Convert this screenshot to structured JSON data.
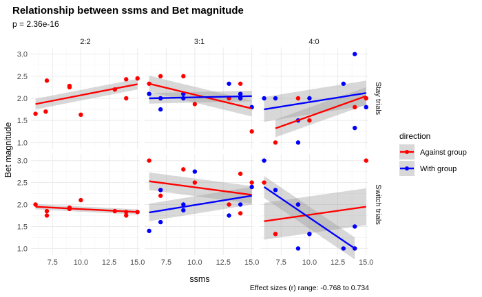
{
  "chart_data": {
    "type": "scatter",
    "title": "Relationship between ssms and Bet magnitude",
    "subtitle": "p = 2.36e-16",
    "xlabel": "ssms",
    "ylabel": "Bet magnitude",
    "caption": "Effect sizes (r) range: -0.768 to 0.734",
    "xlim": [
      5.6,
      15.2
    ],
    "ylim": [
      0.85,
      3.15
    ],
    "xticks": [
      7.5,
      10.0,
      12.5,
      15.0
    ],
    "xtick_labels": [
      "7.5",
      "10.0",
      "12.5",
      "15.0"
    ],
    "yticks": [
      1.0,
      1.5,
      2.0,
      2.5,
      3.0
    ],
    "ytick_labels": [
      "1.0",
      "1.5",
      "2.0",
      "2.5",
      "3.0"
    ],
    "columns": [
      "2:2",
      "3:1",
      "4:0"
    ],
    "rows": [
      "Stay trials",
      "Switch trials"
    ],
    "legend": {
      "title": "direction",
      "entries": [
        {
          "label": "Against group",
          "color": "#FF0000"
        },
        {
          "label": "With group",
          "color": "#0000FF"
        }
      ]
    },
    "panels": [
      {
        "row": "Stay trials",
        "col": "2:2",
        "series": [
          {
            "name": "Against group",
            "color": "#FF0000",
            "points": [
              [
                6,
                1.65
              ],
              [
                6.9,
                1.7
              ],
              [
                7,
                2.4
              ],
              [
                9,
                2.25
              ],
              [
                9,
                2.28
              ],
              [
                10,
                1.63
              ],
              [
                13,
                2.2
              ],
              [
                14,
                2.43
              ],
              [
                14,
                2.0
              ],
              [
                15,
                2.45
              ]
            ],
            "fit": {
              "x": [
                6,
                15
              ],
              "y": [
                1.87,
                2.32
              ],
              "band": [
                0.12,
                0.12
              ]
            }
          }
        ]
      },
      {
        "row": "Stay trials",
        "col": "3:1",
        "series": [
          {
            "name": "Against group",
            "color": "#FF0000",
            "points": [
              [
                6,
                2.33
              ],
              [
                7,
                2.5
              ],
              [
                7,
                2.0
              ],
              [
                9,
                2.5
              ],
              [
                10,
                1.87
              ],
              [
                13,
                2.0
              ],
              [
                14,
                2.33
              ],
              [
                14,
                2.0
              ],
              [
                15,
                1.25
              ]
            ],
            "fit": {
              "x": [
                6,
                15
              ],
              "y": [
                2.33,
                1.77
              ],
              "band": [
                0.18,
                0.18
              ]
            }
          },
          {
            "name": "With group",
            "color": "#0000FF",
            "points": [
              [
                6,
                2.1
              ],
              [
                7,
                1.75
              ],
              [
                7,
                2.0
              ],
              [
                9,
                2.1
              ],
              [
                9,
                2.0
              ],
              [
                13,
                2.33
              ],
              [
                14,
                2.1
              ],
              [
                14,
                2.0
              ],
              [
                15,
                1.8
              ]
            ],
            "fit": {
              "x": [
                6,
                15
              ],
              "y": [
                2.0,
                2.05
              ],
              "band": [
                0.12,
                0.12
              ]
            }
          }
        ]
      },
      {
        "row": "Stay trials",
        "col": "4:0",
        "series": [
          {
            "name": "Against group",
            "color": "#FF0000",
            "points": [
              [
                7,
                1.0
              ],
              [
                9,
                2.0
              ],
              [
                10,
                1.5
              ],
              [
                14,
                1.8
              ],
              [
                15,
                2.0
              ]
            ],
            "fit": {
              "x": [
                7,
                15
              ],
              "y": [
                1.32,
                2.05
              ],
              "band": [
                0.2,
                0.2
              ]
            }
          },
          {
            "name": "With group",
            "color": "#0000FF",
            "points": [
              [
                6,
                2.0
              ],
              [
                7,
                2.0
              ],
              [
                9,
                1.0
              ],
              [
                9,
                1.5
              ],
              [
                10,
                2.0
              ],
              [
                13,
                2.33
              ],
              [
                14,
                3.0
              ],
              [
                14,
                1.33
              ],
              [
                15,
                1.8
              ]
            ],
            "fit": {
              "x": [
                6,
                15
              ],
              "y": [
                1.75,
                2.12
              ],
              "band": [
                0.28,
                0.28
              ]
            }
          }
        ]
      },
      {
        "row": "Switch trials",
        "col": "2:2",
        "series": [
          {
            "name": "Against group",
            "color": "#FF0000",
            "points": [
              [
                6,
                2.0
              ],
              [
                7,
                1.75
              ],
              [
                7,
                1.85
              ],
              [
                9,
                1.9
              ],
              [
                9,
                1.93
              ],
              [
                10,
                2.1
              ],
              [
                13,
                1.85
              ],
              [
                14,
                1.75
              ],
              [
                14,
                1.83
              ],
              [
                15,
                1.83
              ]
            ],
            "fit": {
              "x": [
                6,
                15
              ],
              "y": [
                1.95,
                1.83
              ],
              "band": [
                0.06,
                0.06
              ]
            }
          }
        ]
      },
      {
        "row": "Switch trials",
        "col": "3:1",
        "series": [
          {
            "name": "Against group",
            "color": "#FF0000",
            "points": [
              [
                6,
                3.0
              ],
              [
                7,
                2.33
              ],
              [
                7,
                2.2
              ],
              [
                9,
                2.8
              ],
              [
                10,
                2.5
              ],
              [
                13,
                2.0
              ],
              [
                14,
                2.7
              ],
              [
                14,
                1.8
              ],
              [
                15,
                2.5
              ]
            ],
            "fit": {
              "x": [
                6,
                15
              ],
              "y": [
                2.53,
                2.22
              ],
              "band": [
                0.2,
                0.2
              ]
            }
          },
          {
            "name": "With group",
            "color": "#0000FF",
            "points": [
              [
                6,
                1.4
              ],
              [
                7,
                1.6
              ],
              [
                7,
                2.33
              ],
              [
                9,
                2.0
              ],
              [
                9,
                1.87
              ],
              [
                10,
                2.75
              ],
              [
                13,
                1.75
              ],
              [
                14,
                2.0
              ],
              [
                15,
                2.4
              ]
            ],
            "fit": {
              "x": [
                6,
                15
              ],
              "y": [
                1.82,
                2.2
              ],
              "band": [
                0.2,
                0.2
              ]
            }
          }
        ]
      },
      {
        "row": "Switch trials",
        "col": "4:0",
        "series": [
          {
            "name": "Against group",
            "color": "#FF0000",
            "points": [
              [
                6,
                2.5
              ],
              [
                7,
                1.33
              ],
              [
                9,
                2.0
              ],
              [
                10,
                1.33
              ],
              [
                14,
                1.0
              ],
              [
                15,
                3.0
              ]
            ],
            "fit": {
              "x": [
                6,
                15
              ],
              "y": [
                1.62,
                1.95
              ],
              "band": [
                0.42,
                0.42
              ]
            }
          },
          {
            "name": "With group",
            "color": "#0000FF",
            "points": [
              [
                6,
                3.0
              ],
              [
                7,
                2.33
              ],
              [
                9,
                1.0
              ],
              [
                9,
                2.0
              ],
              [
                10,
                1.33
              ],
              [
                13,
                1.0
              ],
              [
                14,
                1.5
              ],
              [
                14,
                1.0
              ]
            ],
            "fit": {
              "x": [
                6,
                14
              ],
              "y": [
                2.4,
                1.0
              ],
              "band": [
                0.25,
                0.25
              ]
            }
          }
        ]
      }
    ]
  }
}
